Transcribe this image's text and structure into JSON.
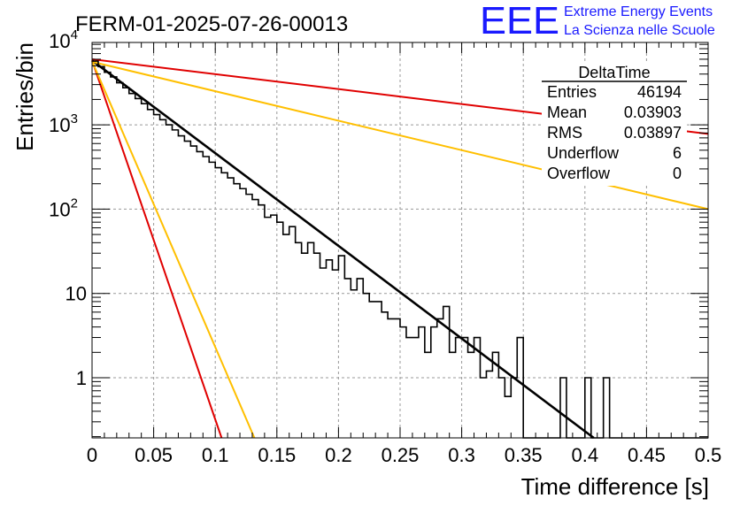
{
  "chart_data": {
    "type": "histogram",
    "title": "FERM-01-2025-07-26-00013",
    "xlabel": "Time difference [s]",
    "ylabel": "Entries/bin",
    "xlim": [
      0,
      0.5
    ],
    "ylim": [
      0.18,
      10000
    ],
    "yscale": "log",
    "grid": true,
    "x_ticks": [
      "0",
      "0.05",
      "0.1",
      "0.15",
      "0.2",
      "0.25",
      "0.3",
      "0.35",
      "0.4",
      "0.45",
      "0.5"
    ],
    "y_ticks": [
      {
        "base": "10",
        "exp": "4"
      },
      {
        "base": "10",
        "exp": "3"
      },
      {
        "base": "10",
        "exp": "2"
      },
      {
        "base": "10",
        "exp": ""
      },
      {
        "base": "1",
        "exp": ""
      }
    ],
    "histogram": {
      "bin_width": 0.005,
      "counts": [
        5700,
        4900,
        4200,
        3700,
        3150,
        2750,
        2350,
        2050,
        1780,
        1520,
        1320,
        1150,
        1000,
        870,
        740,
        640,
        560,
        480,
        420,
        360,
        310,
        270,
        235,
        200,
        175,
        150,
        130,
        112,
        80,
        85,
        70,
        50,
        62,
        40,
        30,
        40,
        30,
        20,
        25,
        19,
        28,
        15,
        11,
        15,
        10,
        8,
        8,
        6,
        5,
        5,
        4,
        3,
        3,
        4,
        2,
        4,
        5,
        7,
        2,
        3,
        3,
        2,
        3,
        1,
        1.2,
        2,
        1,
        0.6,
        1,
        3,
        0.1,
        0.1,
        0.1,
        0.1,
        0.1,
        0.1,
        1,
        0.1,
        0.1,
        0.1,
        1,
        0.1,
        0.1,
        1,
        0.1,
        0.1,
        0.1,
        0.1,
        0.1,
        0.1,
        0.1,
        0.1,
        0.1,
        0.1,
        0.1,
        0.1,
        0.1,
        0.1,
        0.1,
        0.1
      ]
    },
    "fit_curves": [
      {
        "color": "#000000",
        "x": [
          0,
          0.41
        ],
        "y": [
          5800,
          0.18
        ]
      },
      {
        "color": "#e00000",
        "x": [
          0,
          0.5
        ],
        "y": [
          6000,
          780
        ]
      },
      {
        "color": "#ffbf00",
        "x": [
          0,
          0.5
        ],
        "y": [
          5600,
          100
        ]
      },
      {
        "color": "#e00000",
        "x": [
          0,
          0.11
        ],
        "y": [
          5800,
          0.12
        ]
      },
      {
        "color": "#ffbf00",
        "x": [
          0,
          0.135
        ],
        "y": [
          5700,
          0.15
        ]
      }
    ],
    "stats_box": {
      "name": "DeltaTime",
      "rows": [
        {
          "label": "Entries",
          "value": "46194"
        },
        {
          "label": "Mean",
          "value": "0.03903"
        },
        {
          "label": "RMS",
          "value": "0.03897"
        },
        {
          "label": "Underflow",
          "value": "6"
        },
        {
          "label": "Overflow",
          "value": "0"
        }
      ]
    },
    "logo": {
      "text": "EEE",
      "line1": "Extreme Energy Events",
      "line2": "La Scienza nelle Scuole",
      "color": "#1a1aff"
    }
  }
}
